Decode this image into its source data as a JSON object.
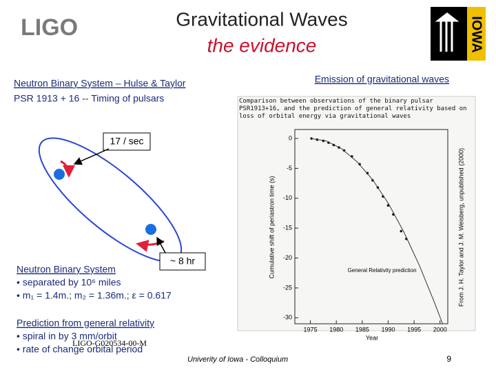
{
  "header": {
    "logo_left": "LIGO",
    "title": "Gravitational Waves",
    "subtitle": "the evidence",
    "logo_right": "IOWA"
  },
  "left": {
    "heading": "Neutron Binary System – Hulse & Taylor",
    "subheading": "PSR 1913 + 16  -- Timing of pulsars",
    "callout_fast": "17 / sec",
    "callout_period": "~ 8 hr",
    "system_title": "Neutron Binary System",
    "system_bullets": [
      "• separated by 10⁶ miles",
      "• m₁ = 1.4m.; m₂ = 1.36m.; ε = 0.617"
    ],
    "prediction_title": "Prediction from general relativity",
    "prediction_bullets": [
      "• spiral in by 3 mm/orbit",
      "• rate of change orbital period"
    ]
  },
  "right": {
    "heading": "Emission of gravitational waves"
  },
  "footer": {
    "doc_id": "LIGO-G020534-00-M",
    "venue": "Univerity of Iowa - Colloquium",
    "page": "9"
  },
  "chart_data": {
    "type": "scatter",
    "title": "Comparison between observations of the binary pulsar PSR1913+16, and the prediction of general relativity based on loss of orbital energy via gravitational waves",
    "credit": "From J. H. Taylor and J. M. Weisberg, unpublished (2000)",
    "x_label": "Year",
    "y_label": "Cumulative shift of periastron time (s)",
    "xlim": [
      1972,
      2001.5
    ],
    "ylim": [
      -31,
      1.5
    ],
    "xticks": [
      1975,
      1980,
      1985,
      1990,
      1995,
      2000
    ],
    "yticks": [
      0,
      -5,
      -10,
      -15,
      -20,
      -25,
      -30
    ],
    "series": [
      {
        "kind": "points",
        "color": "#111111",
        "x": [
          1975.2,
          1976.3,
          1977.5,
          1978.5,
          1979.5,
          1980.5,
          1981.5,
          1983,
          1984.5,
          1986,
          1987,
          1988,
          1989,
          1990,
          1991,
          1992.5,
          1993.5
        ],
        "values": [
          0,
          -0.2,
          -0.4,
          -0.7,
          -1.1,
          -1.5,
          -2,
          -3,
          -4.3,
          -5.8,
          -7,
          -8.2,
          -9.7,
          -11.2,
          -12.7,
          -15.5,
          -16.8
        ]
      },
      {
        "kind": "line",
        "name": "General Relativity prediction",
        "color": "#333333",
        "x": [
          1975,
          1978,
          1981,
          1984,
          1987,
          1990,
          1993,
          1996,
          1999,
          2000.5
        ],
        "values": [
          0,
          -0.4,
          -1.7,
          -3.9,
          -6.9,
          -10.8,
          -15.6,
          -21.2,
          -27.6,
          -31
        ]
      }
    ]
  }
}
